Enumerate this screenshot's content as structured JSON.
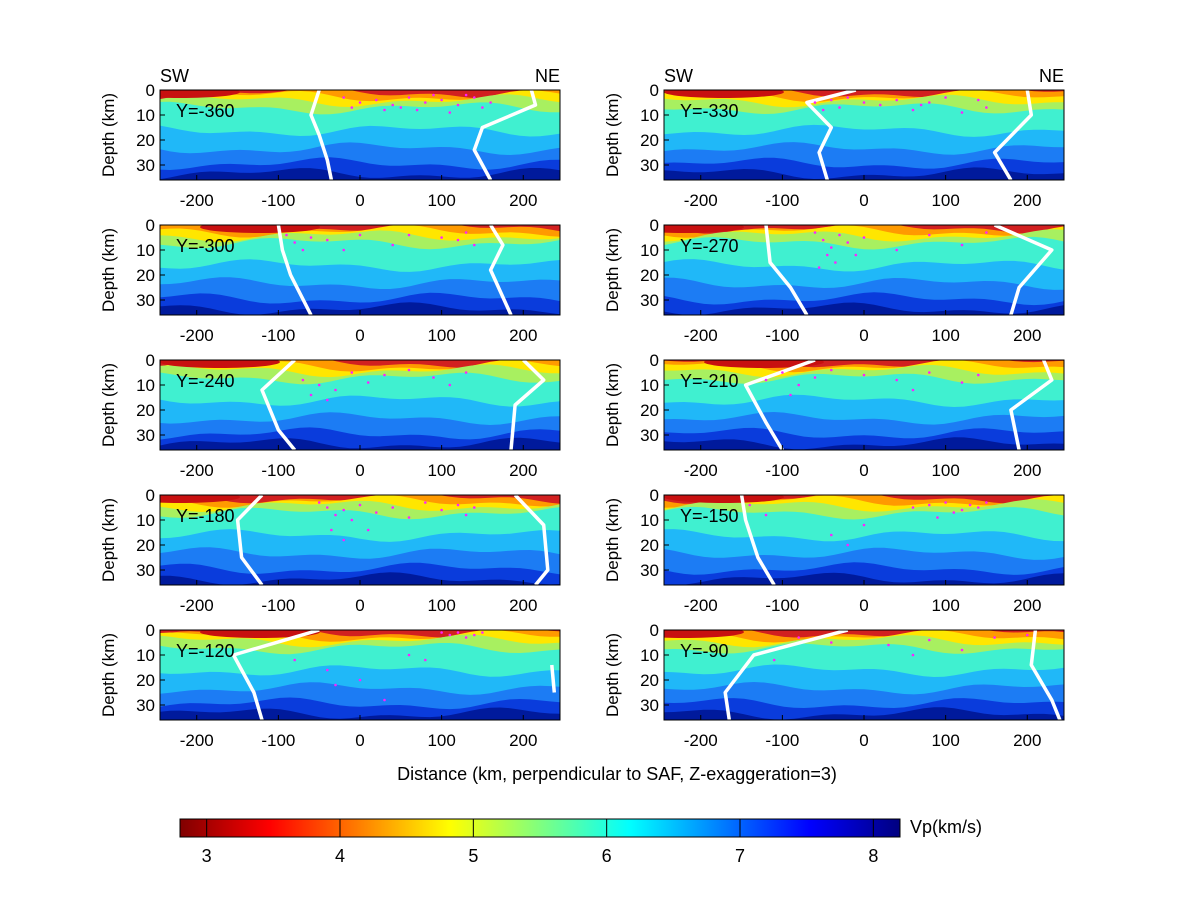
{
  "figure": {
    "xlabel": "Distance (km, perpendicular to SAF, Z-exaggeration=3)",
    "ylabel": "Depth (km)",
    "left_label": "SW",
    "right_label": "NE"
  },
  "colorbar": {
    "label": "Vp(km/s)",
    "ticks": [
      3,
      4,
      5,
      6,
      7,
      8
    ],
    "range": [
      2.8,
      8.2
    ],
    "colormap": "jet"
  },
  "chart_data": {
    "type": "heatmap",
    "xlim": [
      -245,
      245
    ],
    "ylim": [
      0,
      36
    ],
    "xticks": [
      -200,
      -100,
      0,
      100,
      200
    ],
    "yticks": [
      0,
      10,
      20,
      30
    ],
    "panels": [
      {
        "label": "Y=-360",
        "orient_labels": true,
        "contour_left": [
          [
            -50,
            0
          ],
          [
            -60,
            10
          ],
          [
            -50,
            18
          ],
          [
            -40,
            28
          ],
          [
            -35,
            36
          ]
        ],
        "contour_right": [
          [
            210,
            0
          ],
          [
            215,
            6
          ],
          [
            150,
            15
          ],
          [
            140,
            24
          ],
          [
            160,
            36
          ]
        ],
        "quakes": [
          [
            -20,
            3
          ],
          [
            0,
            5
          ],
          [
            20,
            4
          ],
          [
            40,
            6
          ],
          [
            60,
            3
          ],
          [
            80,
            5
          ],
          [
            100,
            4
          ],
          [
            120,
            6
          ],
          [
            140,
            3
          ],
          [
            160,
            5
          ],
          [
            110,
            9
          ],
          [
            70,
            8
          ],
          [
            30,
            8
          ],
          [
            -10,
            7
          ],
          [
            130,
            2
          ],
          [
            90,
            2
          ],
          [
            50,
            7
          ],
          [
            150,
            7
          ]
        ]
      },
      {
        "label": "Y=-330",
        "orient_labels": true,
        "contour_left": [
          [
            -10,
            0
          ],
          [
            -70,
            5
          ],
          [
            -40,
            15
          ],
          [
            -55,
            25
          ],
          [
            -45,
            36
          ]
        ],
        "contour_right": [
          [
            200,
            0
          ],
          [
            205,
            10
          ],
          [
            160,
            25
          ],
          [
            180,
            36
          ]
        ],
        "quakes": [
          [
            -60,
            5
          ],
          [
            -40,
            4
          ],
          [
            -30,
            7
          ],
          [
            -20,
            3
          ],
          [
            0,
            5
          ],
          [
            20,
            6
          ],
          [
            40,
            4
          ],
          [
            60,
            8
          ],
          [
            80,
            5
          ],
          [
            100,
            3
          ],
          [
            140,
            4
          ],
          [
            150,
            7
          ],
          [
            120,
            9
          ],
          [
            -50,
            8
          ],
          [
            70,
            6
          ]
        ]
      },
      {
        "label": "Y=-300",
        "orient_labels": false,
        "contour_left": [
          [
            -100,
            0
          ],
          [
            -95,
            10
          ],
          [
            -85,
            20
          ],
          [
            -60,
            36
          ]
        ],
        "contour_right": [
          [
            160,
            0
          ],
          [
            175,
            8
          ],
          [
            160,
            18
          ],
          [
            185,
            36
          ]
        ],
        "quakes": [
          [
            -90,
            4
          ],
          [
            -80,
            7
          ],
          [
            -60,
            5
          ],
          [
            -40,
            6
          ],
          [
            -20,
            10
          ],
          [
            0,
            4
          ],
          [
            40,
            8
          ],
          [
            100,
            5
          ],
          [
            120,
            6
          ],
          [
            130,
            3
          ],
          [
            140,
            8
          ],
          [
            -70,
            10
          ],
          [
            60,
            4
          ]
        ]
      },
      {
        "label": "Y=-270",
        "orient_labels": false,
        "contour_left": [
          [
            -120,
            0
          ],
          [
            -115,
            15
          ],
          [
            -90,
            25
          ],
          [
            -70,
            36
          ]
        ],
        "contour_right": [
          [
            160,
            0
          ],
          [
            230,
            10
          ],
          [
            190,
            25
          ],
          [
            180,
            36
          ]
        ],
        "quakes": [
          [
            -60,
            3
          ],
          [
            -50,
            6
          ],
          [
            -40,
            9
          ],
          [
            -30,
            4
          ],
          [
            -45,
            12
          ],
          [
            -35,
            15
          ],
          [
            -20,
            7
          ],
          [
            0,
            5
          ],
          [
            40,
            10
          ],
          [
            80,
            4
          ],
          [
            120,
            8
          ],
          [
            150,
            3
          ],
          [
            -10,
            12
          ],
          [
            -55,
            17
          ]
        ]
      },
      {
        "label": "Y=-240",
        "orient_labels": false,
        "contour_left": [
          [
            -80,
            0
          ],
          [
            -120,
            12
          ],
          [
            -100,
            28
          ],
          [
            -80,
            36
          ]
        ],
        "contour_right": [
          [
            200,
            0
          ],
          [
            225,
            8
          ],
          [
            190,
            18
          ],
          [
            185,
            36
          ]
        ],
        "quakes": [
          [
            -70,
            8
          ],
          [
            -50,
            10
          ],
          [
            -30,
            12
          ],
          [
            -10,
            5
          ],
          [
            10,
            9
          ],
          [
            30,
            6
          ],
          [
            60,
            4
          ],
          [
            90,
            7
          ],
          [
            110,
            10
          ],
          [
            130,
            5
          ],
          [
            -40,
            16
          ],
          [
            -60,
            14
          ]
        ]
      },
      {
        "label": "Y=-210",
        "orient_labels": false,
        "contour_left": [
          [
            -60,
            0
          ],
          [
            -145,
            10
          ],
          [
            -120,
            25
          ],
          [
            -100,
            36
          ]
        ],
        "contour_right": [
          [
            220,
            0
          ],
          [
            230,
            8
          ],
          [
            180,
            20
          ],
          [
            190,
            36
          ]
        ],
        "quakes": [
          [
            -120,
            8
          ],
          [
            -100,
            5
          ],
          [
            -80,
            10
          ],
          [
            -60,
            7
          ],
          [
            -40,
            4
          ],
          [
            0,
            6
          ],
          [
            40,
            8
          ],
          [
            80,
            5
          ],
          [
            120,
            9
          ],
          [
            140,
            6
          ],
          [
            -90,
            14
          ],
          [
            60,
            12
          ]
        ]
      },
      {
        "label": "Y=-180",
        "orient_labels": false,
        "contour_left": [
          [
            -120,
            0
          ],
          [
            -150,
            10
          ],
          [
            -145,
            25
          ],
          [
            -120,
            36
          ]
        ],
        "contour_right": [
          [
            190,
            0
          ],
          [
            225,
            12
          ],
          [
            230,
            30
          ],
          [
            215,
            36
          ]
        ],
        "quakes": [
          [
            -50,
            3
          ],
          [
            -40,
            5
          ],
          [
            -30,
            8
          ],
          [
            -20,
            6
          ],
          [
            -10,
            10
          ],
          [
            0,
            4
          ],
          [
            20,
            7
          ],
          [
            40,
            5
          ],
          [
            60,
            9
          ],
          [
            80,
            3
          ],
          [
            100,
            6
          ],
          [
            120,
            4
          ],
          [
            130,
            8
          ],
          [
            140,
            5
          ],
          [
            -35,
            14
          ],
          [
            -20,
            18
          ],
          [
            10,
            14
          ]
        ]
      },
      {
        "label": "Y=-150",
        "orient_labels": false,
        "contour_left": [
          [
            -150,
            0
          ],
          [
            -145,
            10
          ],
          [
            -130,
            25
          ],
          [
            -110,
            36
          ]
        ],
        "contour_right": [],
        "quakes": [
          [
            -140,
            4
          ],
          [
            -120,
            8
          ],
          [
            60,
            5
          ],
          [
            80,
            4
          ],
          [
            100,
            3
          ],
          [
            110,
            7
          ],
          [
            120,
            6
          ],
          [
            130,
            4
          ],
          [
            140,
            5
          ],
          [
            150,
            3
          ],
          [
            -40,
            16
          ],
          [
            -20,
            20
          ],
          [
            0,
            12
          ],
          [
            90,
            9
          ]
        ]
      },
      {
        "label": "Y=-120",
        "orient_labels": false,
        "contour_left": [
          [
            -50,
            0
          ],
          [
            -155,
            10
          ],
          [
            -130,
            25
          ],
          [
            -120,
            36
          ]
        ],
        "contour_right": [
          [
            235,
            14
          ],
          [
            238,
            25
          ]
        ],
        "quakes": [
          [
            100,
            1
          ],
          [
            110,
            2
          ],
          [
            120,
            1
          ],
          [
            130,
            3
          ],
          [
            140,
            2
          ],
          [
            150,
            1
          ],
          [
            80,
            12
          ],
          [
            60,
            10
          ],
          [
            -40,
            16
          ],
          [
            -30,
            22
          ],
          [
            0,
            20
          ],
          [
            30,
            28
          ],
          [
            -80,
            12
          ]
        ]
      },
      {
        "label": "Y=-90",
        "orient_labels": false,
        "contour_left": [
          [
            -20,
            0
          ],
          [
            -135,
            10
          ],
          [
            -170,
            25
          ],
          [
            -165,
            36
          ]
        ],
        "contour_right": [
          [
            210,
            0
          ],
          [
            205,
            14
          ],
          [
            230,
            28
          ],
          [
            240,
            36
          ]
        ],
        "quakes": [
          [
            -80,
            3
          ],
          [
            -40,
            5
          ],
          [
            30,
            6
          ],
          [
            80,
            4
          ],
          [
            120,
            8
          ],
          [
            160,
            3
          ],
          [
            200,
            2
          ],
          [
            60,
            10
          ],
          [
            -110,
            12
          ]
        ]
      }
    ]
  }
}
